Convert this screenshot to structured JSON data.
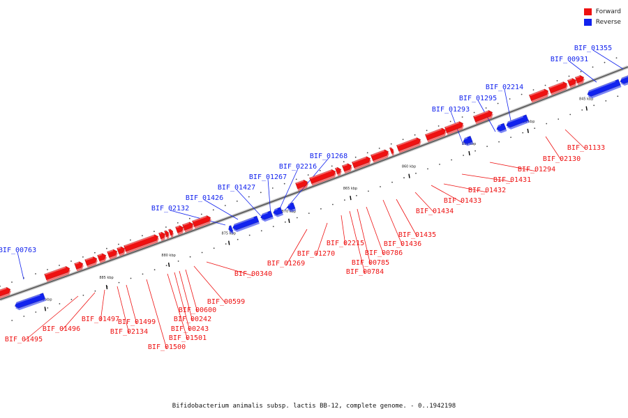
{
  "legend": {
    "forward": {
      "label": "Forward",
      "color": "#ee1111"
    },
    "reverse": {
      "label": "Reverse",
      "color": "#1122ee"
    }
  },
  "caption": "Bifidobacterium animalis subsp. lactis BB-12, complete genome. - 0..1942198",
  "ticks": [
    "845 kbp",
    "850 kbp",
    "855 kbp",
    "860 kbp",
    "865 kbp",
    "870 kbp",
    "875 kbp",
    "880 kbp",
    "885 kbp",
    "890 kbp"
  ],
  "reverse_genes": [
    "BIF_01355",
    "BIF_00931",
    "BIF_02214",
    "BIF_01295",
    "BIF_01293",
    "BIF_01268",
    "BIF_02216",
    "BIF_01267",
    "BIF_01427",
    "BIF_01426",
    "BIF_02132",
    "BIF_00763"
  ],
  "forward_genes": [
    "BIF_01133",
    "BIF_02130",
    "BIF_01294",
    "BIF_01431",
    "BIF_01432",
    "BIF_01433",
    "BIF_01434",
    "BIF_01435",
    "BIF_01436",
    "BIF_00786",
    "BIF_00785",
    "BIF_00784",
    "BIF_02215",
    "BIF_01270",
    "BIF_01269",
    "BIF_00340",
    "BIF_00599",
    "BIF_00600",
    "BIF_00242",
    "BIF_00243",
    "BIF_01501",
    "BIF_01500",
    "BIF_01499",
    "BIF_02134",
    "BIF_01497",
    "BIF_01496",
    "BIF_01495"
  ]
}
